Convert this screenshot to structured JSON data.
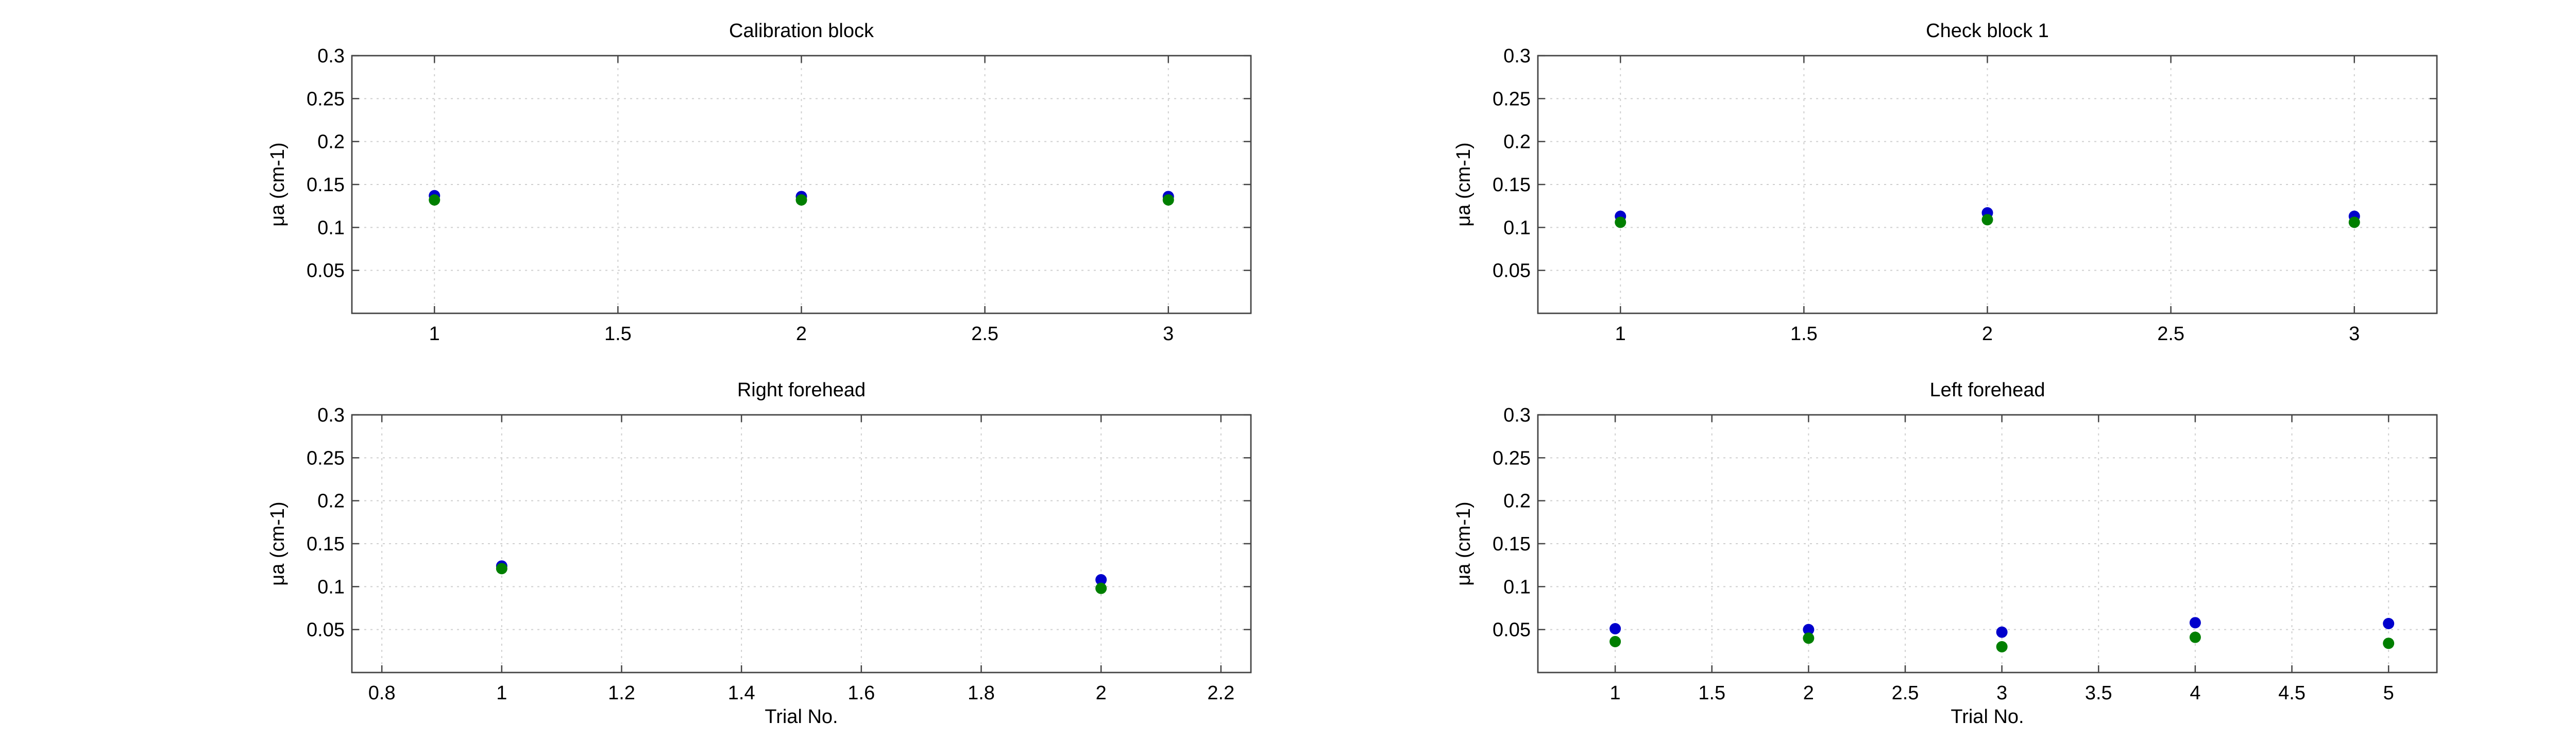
{
  "chart_data": [
    {
      "type": "scatter",
      "title": "Calibration block",
      "xlabel": "",
      "ylabel": "μa (cm-1)",
      "xlim": [
        0.775,
        3.225
      ],
      "ylim": [
        0,
        0.3
      ],
      "xticks": [
        1,
        1.5,
        2,
        2.5,
        3
      ],
      "yticks": [
        0.05,
        0.1,
        0.15,
        0.2,
        0.25,
        0.3
      ],
      "grid": true,
      "series": [
        {
          "color": "#0000cc",
          "x": [
            1,
            2,
            3
          ],
          "y": [
            0.137,
            0.136,
            0.136
          ]
        },
        {
          "color": "#007f00",
          "x": [
            1,
            2,
            3
          ],
          "y": [
            0.132,
            0.132,
            0.132
          ]
        }
      ]
    },
    {
      "type": "scatter",
      "title": "Check block 1",
      "xlabel": "",
      "ylabel": "μa (cm-1)",
      "xlim": [
        0.775,
        3.225
      ],
      "ylim": [
        0,
        0.3
      ],
      "xticks": [
        1,
        1.5,
        2,
        2.5,
        3
      ],
      "yticks": [
        0.05,
        0.1,
        0.15,
        0.2,
        0.25,
        0.3
      ],
      "grid": true,
      "series": [
        {
          "color": "#0000cc",
          "x": [
            1,
            2,
            3
          ],
          "y": [
            0.113,
            0.117,
            0.113
          ]
        },
        {
          "color": "#007f00",
          "x": [
            1,
            2,
            3
          ],
          "y": [
            0.106,
            0.109,
            0.106
          ]
        }
      ]
    },
    {
      "type": "scatter",
      "title": "Right forehead",
      "xlabel": "Trial No.",
      "ylabel": "μa (cm-1)",
      "xlim": [
        0.75,
        2.25
      ],
      "ylim": [
        0,
        0.3
      ],
      "xticks": [
        0.8,
        1,
        1.2,
        1.4,
        1.6,
        1.8,
        2,
        2.2
      ],
      "yticks": [
        0.05,
        0.1,
        0.15,
        0.2,
        0.25,
        0.3
      ],
      "grid": true,
      "series": [
        {
          "color": "#0000cc",
          "x": [
            1,
            2
          ],
          "y": [
            0.124,
            0.108
          ]
        },
        {
          "color": "#007f00",
          "x": [
            1,
            2
          ],
          "y": [
            0.121,
            0.098
          ]
        }
      ]
    },
    {
      "type": "scatter",
      "title": "Left forehead",
      "xlabel": "Trial No.",
      "ylabel": "μa (cm-1)",
      "xlim": [
        0.6,
        5.25
      ],
      "ylim": [
        0,
        0.3
      ],
      "xticks": [
        1,
        1.5,
        2,
        2.5,
        3,
        3.5,
        4,
        4.5,
        5
      ],
      "yticks": [
        0.05,
        0.1,
        0.15,
        0.2,
        0.25,
        0.3
      ],
      "grid": true,
      "series": [
        {
          "color": "#0000cc",
          "x": [
            1,
            2,
            3,
            4,
            5
          ],
          "y": [
            0.051,
            0.05,
            0.047,
            0.058,
            0.057
          ]
        },
        {
          "color": "#007f00",
          "x": [
            1,
            2,
            3,
            4,
            5
          ],
          "y": [
            0.036,
            0.04,
            0.03,
            0.041,
            0.034
          ]
        }
      ]
    }
  ]
}
